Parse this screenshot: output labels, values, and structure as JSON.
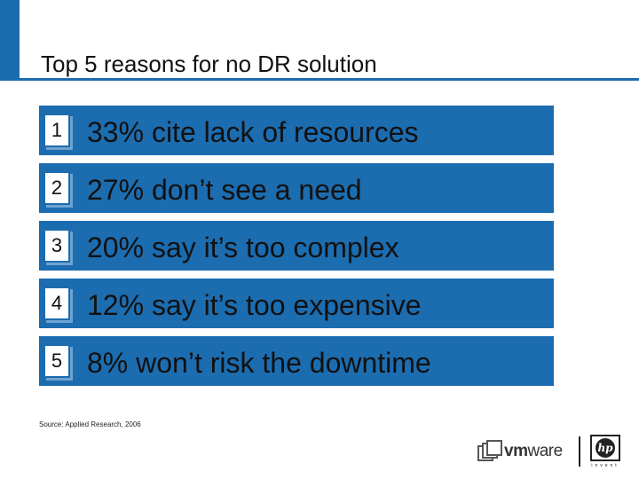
{
  "title": "Top 5 reasons for no DR solution",
  "items": [
    {
      "number": "1",
      "text": "33% cite lack of resources"
    },
    {
      "number": "2",
      "text": "27% don’t see a need"
    },
    {
      "number": "3",
      "text": "20% say it’s too complex"
    },
    {
      "number": "4",
      "text": "12% say it’s too expensive"
    },
    {
      "number": "5",
      "text": "8% won’t risk the downtime"
    }
  ],
  "source": "Source: Applied Research, 2006",
  "logos": {
    "vmware_vm": "vm",
    "vmware_ware": "ware",
    "hp_mark": "hp",
    "hp_tagline": "invent"
  },
  "colors": {
    "accent": "#1c6cb0",
    "box_shadow": "#6fa3d2",
    "text": "#111111"
  }
}
